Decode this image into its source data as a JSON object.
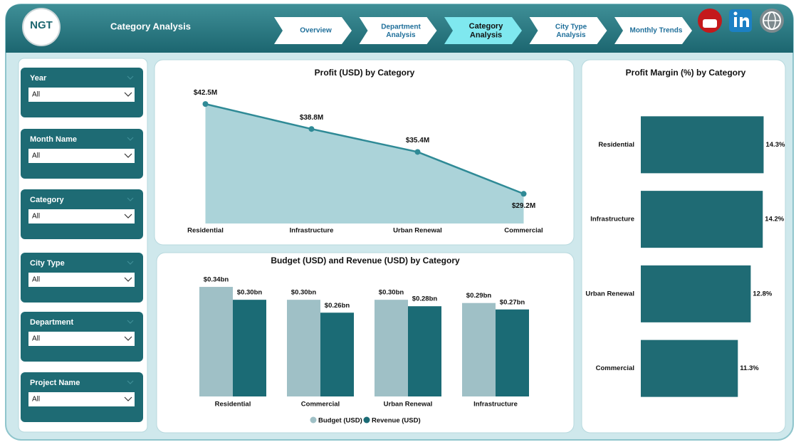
{
  "header": {
    "logo": "NGT",
    "title": "Category Analysis"
  },
  "nav": [
    "Overview",
    "Department Analysis",
    "Category Analysis",
    "City Type Analysis",
    "Monthly Trends"
  ],
  "filters": [
    {
      "label": "Year",
      "value": "All"
    },
    {
      "label": "Month Name",
      "value": "All"
    },
    {
      "label": "Category",
      "value": "All"
    },
    {
      "label": "City Type",
      "value": "All"
    },
    {
      "label": "Department",
      "value": "All"
    },
    {
      "label": "Project Name",
      "value": "All"
    }
  ],
  "chart_data": [
    {
      "type": "area",
      "title": "Profit (USD) by Category",
      "categories": [
        "Residential",
        "Infrastructure",
        "Urban Renewal",
        "Commercial"
      ],
      "values": [
        42.5,
        38.8,
        35.4,
        29.2
      ],
      "value_labels": [
        "$42.5M",
        "$38.8M",
        "$35.4M",
        "$29.2M"
      ],
      "color": "#2f8a96",
      "fill": "#abd3d9",
      "ylim": [
        24.8,
        44.2
      ]
    },
    {
      "type": "grouped_bar",
      "title": "Budget (USD) and Revenue (USD) by Category",
      "categories": [
        "Residential",
        "Commercial",
        "Urban Renewal",
        "Infrastructure"
      ],
      "series": [
        {
          "name": "Budget (USD)",
          "color": "#9fc0c6",
          "values": [
            0.34,
            0.3,
            0.3,
            0.29
          ],
          "value_labels": [
            "$0.34bn",
            "$0.30bn",
            "$0.30bn",
            "$0.29bn"
          ]
        },
        {
          "name": "Revenue (USD)",
          "color": "#1b6b75",
          "values": [
            0.3,
            0.26,
            0.28,
            0.27
          ],
          "value_labels": [
            "$0.30bn",
            "$0.26bn",
            "$0.28bn",
            "$0.27bn"
          ]
        }
      ],
      "ylim": [
        0,
        0.36
      ],
      "legend": "bottom"
    },
    {
      "type": "hbar",
      "title": "Profit Margin (%) by Category",
      "categories": [
        "Residential",
        "Infrastructure",
        "Urban Renewal",
        "Commercial"
      ],
      "values": [
        14.3,
        14.2,
        12.8,
        11.3
      ],
      "value_labels": [
        "14.3%",
        "14.2%",
        "12.8%",
        "11.3%"
      ],
      "color": "#1f6b74",
      "xlim": [
        0,
        16
      ]
    }
  ]
}
